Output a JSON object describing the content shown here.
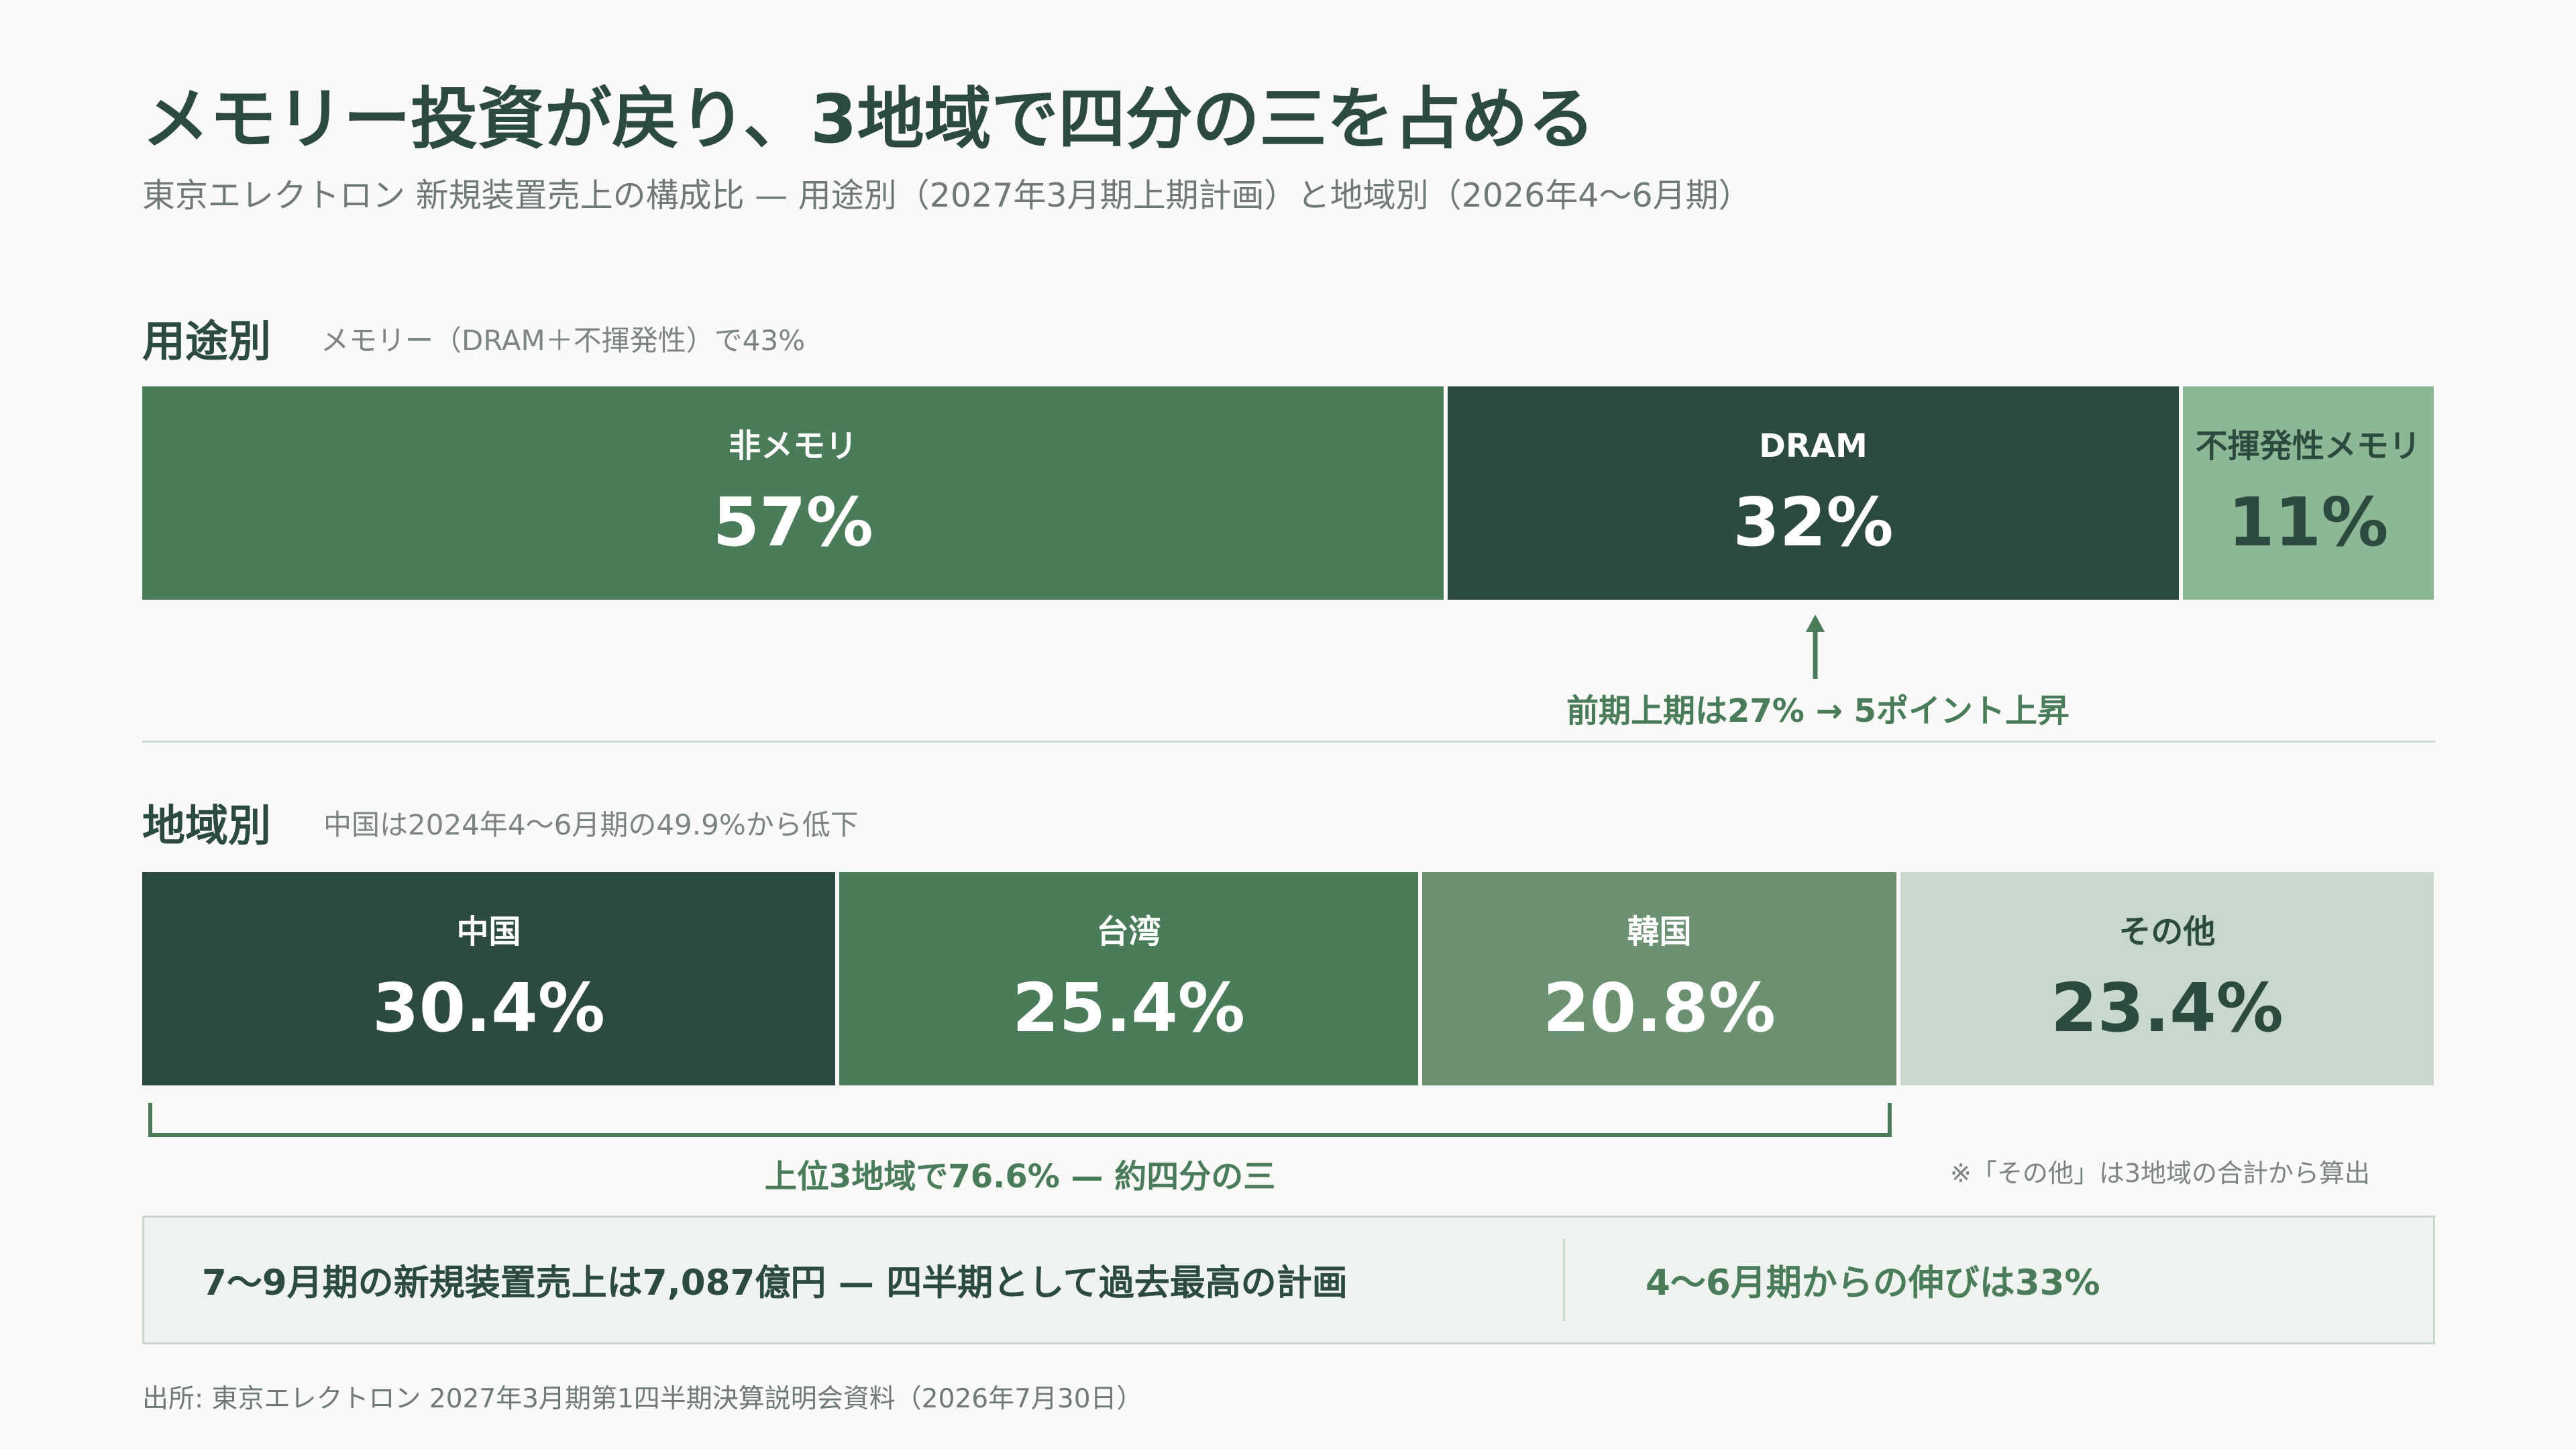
{
  "title": "メモリー投資が戻り、3地域で四分の三を占める",
  "subtitle": "東京エレクトロン 新規装置売上の構成比 — 用途別（2027年3月期上期計画）と地域別（2026年4〜6月期）",
  "colors": {
    "darkest": "#2d4a3e",
    "dark": "#4a7c59",
    "mid": "#6b9171",
    "light": "#8cb896",
    "lightest": "#c9d8cd",
    "accent_text": "#4a7c59"
  },
  "chart_data": [
    {
      "type": "stacked-bar",
      "section_title": "用途別",
      "note": "メモリー（DRAM＋不揮発性）で43%",
      "categories": [
        "非メモリ",
        "DRAM",
        "不揮発性メモリ"
      ],
      "values": [
        57,
        32,
        11
      ],
      "labels": [
        "57%",
        "32%",
        "11%"
      ],
      "colors": [
        "#4a7c59",
        "#2d4a3e",
        "#8cb896"
      ],
      "annotation": "前期上期は27% → 5ポイント上昇"
    },
    {
      "type": "stacked-bar",
      "section_title": "地域別",
      "note": "中国は2024年4〜6月期の49.9%から低下",
      "categories": [
        "中国",
        "台湾",
        "韓国",
        "その他"
      ],
      "values": [
        30.4,
        25.4,
        20.8,
        23.4
      ],
      "labels": [
        "30.4%",
        "25.4%",
        "20.8%",
        "23.4%"
      ],
      "colors": [
        "#2d4a3e",
        "#4a7c59",
        "#6b9171",
        "#c9d8cd"
      ],
      "bracket_label": "上位3地域で76.6% — 約四分の三",
      "footnote": "※「その他」は3地域の合計から算出"
    }
  ],
  "summary": {
    "left": "7〜9月期の新規装置売上は7,087億円 — 四半期として過去最高の計画",
    "right": "4〜6月期からの伸びは33%"
  },
  "source": "出所: 東京エレクトロン 2027年3月期第1四半期決算説明会資料（2026年7月30日）"
}
